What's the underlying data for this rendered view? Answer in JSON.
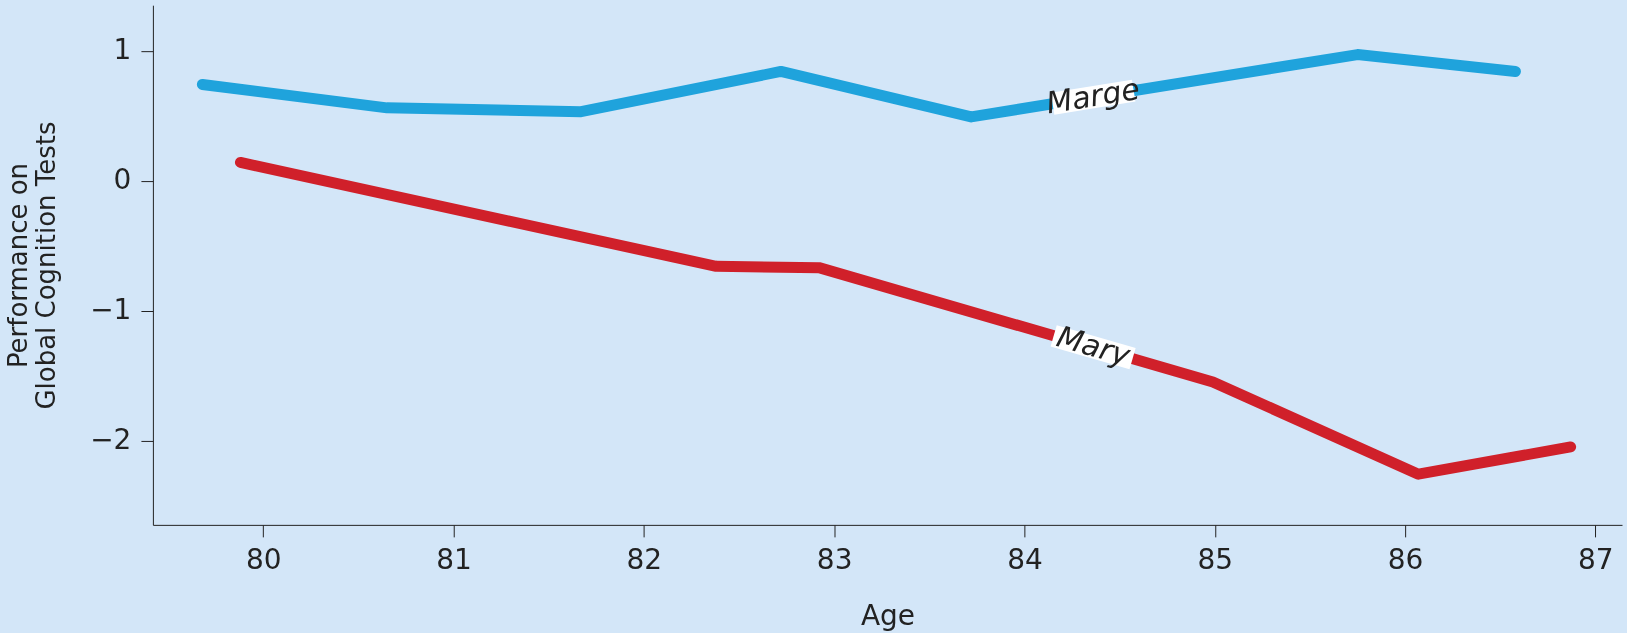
{
  "chart_data": {
    "type": "line",
    "xlabel": "Age",
    "ylabel": "Performance on\nGlobal Cognition Tests",
    "xlim": [
      79.42,
      87.14
    ],
    "xticks": [
      80,
      81,
      82,
      83,
      84,
      85,
      86,
      87
    ],
    "ylim": [
      -2.65,
      1.35
    ],
    "yticks": [
      -2,
      -1,
      0,
      1
    ],
    "grid": false,
    "marker": "none",
    "line_style": "solid",
    "series": [
      {
        "name": "Marge",
        "color": "#1fa3dc",
        "x": [
          79.68,
          80.65,
          81.67,
          82.72,
          83.72,
          85.75,
          86.58
        ],
        "values": [
          0.74,
          0.56,
          0.53,
          0.84,
          0.49,
          0.97,
          0.84
        ]
      },
      {
        "name": "Mary",
        "color": "#d0202a",
        "x": [
          79.88,
          82.38,
          82.92,
          84.99,
          86.07,
          86.87
        ],
        "values": [
          0.14,
          -0.66,
          -0.67,
          -1.55,
          -2.26,
          -2.05
        ]
      }
    ]
  }
}
